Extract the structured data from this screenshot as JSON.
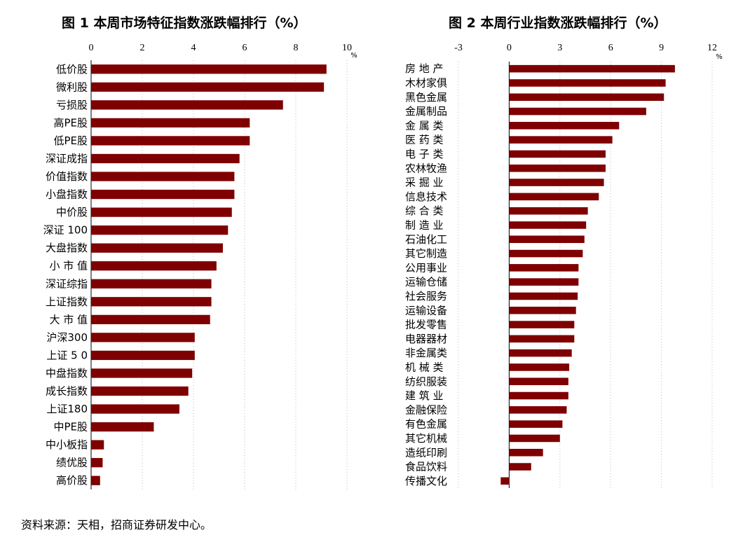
{
  "chart_data": [
    {
      "type": "bar",
      "orientation": "horizontal",
      "title": "图 1   本周市场特征指数涨跌幅排行（%）",
      "unit": "%",
      "xlim": [
        0,
        10
      ],
      "ticks": [
        "0",
        "2",
        "4",
        "6",
        "8",
        "10"
      ],
      "tick_values": [
        0,
        2,
        4,
        6,
        8,
        10
      ],
      "grid": "vertical dotted",
      "bar_color": "#7f0000",
      "categories": [
        "低价股",
        "微利股",
        "亏损股",
        "高PE股",
        "低PE股",
        "深证成指",
        "价值指数",
        "小盘指数",
        "中价股",
        "深证 100",
        "大盘指数",
        "小 市 值",
        "深证综指",
        "上证指数",
        "大 市 值",
        "沪深300",
        "上证 5 0",
        "中盘指数",
        "成长指数",
        "上证180",
        "中PE股",
        "中小板指",
        "绩优股",
        "高价股"
      ],
      "values": [
        9.2,
        9.1,
        7.5,
        6.2,
        6.2,
        5.8,
        5.6,
        5.6,
        5.5,
        5.35,
        5.15,
        4.9,
        4.7,
        4.7,
        4.65,
        4.05,
        4.05,
        3.95,
        3.8,
        3.45,
        2.45,
        0.5,
        0.45,
        0.35
      ]
    },
    {
      "type": "bar",
      "orientation": "horizontal",
      "title": "图 2   本周行业指数涨跌幅排行（%）",
      "unit": "%",
      "xlim": [
        -3,
        12
      ],
      "ticks": [
        "-3",
        "0",
        "3",
        "6",
        "9",
        "12"
      ],
      "tick_values": [
        -3,
        0,
        3,
        6,
        9,
        12
      ],
      "grid": "vertical dotted",
      "bar_color": "#7f0000",
      "categories": [
        "房 地 产",
        "木材家俱",
        "黑色金属",
        "金属制品",
        "金 属 类",
        "医 药 类",
        "电 子 类",
        "农林牧渔",
        "采 掘 业",
        "信息技术",
        "综 合 类",
        "制 造 业",
        "石油化工",
        "其它制造",
        "公用事业",
        "运输仓储",
        "社会服务",
        "运输设备",
        "批发零售",
        "电器器材",
        "非金属类",
        "机 械 类",
        "纺织服装",
        "建 筑 业",
        "金融保险",
        "有色金属",
        "其它机械",
        "造纸印刷",
        "食品饮料",
        "传播文化"
      ],
      "values": [
        9.8,
        9.25,
        9.15,
        8.1,
        6.5,
        6.1,
        5.7,
        5.7,
        5.6,
        5.3,
        4.65,
        4.55,
        4.45,
        4.35,
        4.1,
        4.1,
        4.05,
        3.95,
        3.85,
        3.85,
        3.7,
        3.55,
        3.5,
        3.5,
        3.4,
        3.15,
        3.0,
        2.0,
        1.3,
        -0.5
      ]
    }
  ],
  "source_note": "资料来源：天相，招商证券研发中心。"
}
